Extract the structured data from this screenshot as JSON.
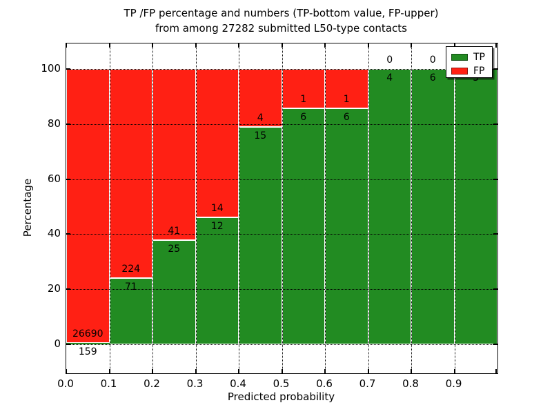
{
  "title": {
    "line1": "TP /FP percentage and numbers (TP-bottom value, FP-upper)",
    "line2": "from among 27282 submitted L50-type contacts"
  },
  "axes": {
    "xlabel": "Predicted probability",
    "ylabel": "Percentage",
    "ytick_labels": [
      "0",
      "20",
      "40",
      "60",
      "80",
      "100"
    ],
    "ytick_values": [
      0,
      20,
      40,
      60,
      80,
      100
    ],
    "xtick_labels": [
      "0.0",
      "0.1",
      "0.2",
      "0.3",
      "0.4",
      "0.5",
      "0.6",
      "0.7",
      "0.8",
      "0.9"
    ],
    "grid": "dotted"
  },
  "legend": {
    "items": [
      {
        "label": "TP",
        "color": "#228b22"
      },
      {
        "label": "FP",
        "color": "#ff2014"
      }
    ],
    "position": "upper right"
  },
  "chart_data": {
    "type": "bar",
    "stacked": true,
    "units": "percent of bin total",
    "title": "TP /FP percentage and numbers (TP-bottom value, FP-upper) from among 27282 submitted L50-type contacts",
    "xlabel": "Predicted probability",
    "ylabel": "Percentage",
    "total_contacts": 27282,
    "bin_width": 0.1,
    "categories": [
      "0.0-0.1",
      "0.1-0.2",
      "0.2-0.3",
      "0.3-0.4",
      "0.4-0.5",
      "0.5-0.6",
      "0.6-0.7",
      "0.7-0.8",
      "0.8-0.9",
      "0.9-1.0"
    ],
    "series": [
      {
        "name": "TP",
        "color": "#228b22",
        "counts": [
          159,
          71,
          25,
          12,
          15,
          6,
          6,
          4,
          6,
          3
        ],
        "percentages": [
          0.59,
          24.07,
          37.88,
          46.15,
          78.95,
          85.71,
          85.71,
          100,
          100,
          100
        ]
      },
      {
        "name": "FP",
        "color": "#ff2014",
        "counts": [
          26690,
          224,
          41,
          14,
          4,
          1,
          1,
          0,
          0,
          0
        ],
        "percentages": [
          99.41,
          75.93,
          62.12,
          53.85,
          21.05,
          14.29,
          14.29,
          0,
          0,
          0
        ]
      }
    ],
    "label_convention": "TP count below segment boundary, FP count above segment boundary",
    "ylim_data": [
      0,
      100
    ],
    "xlim": [
      0,
      1
    ]
  }
}
